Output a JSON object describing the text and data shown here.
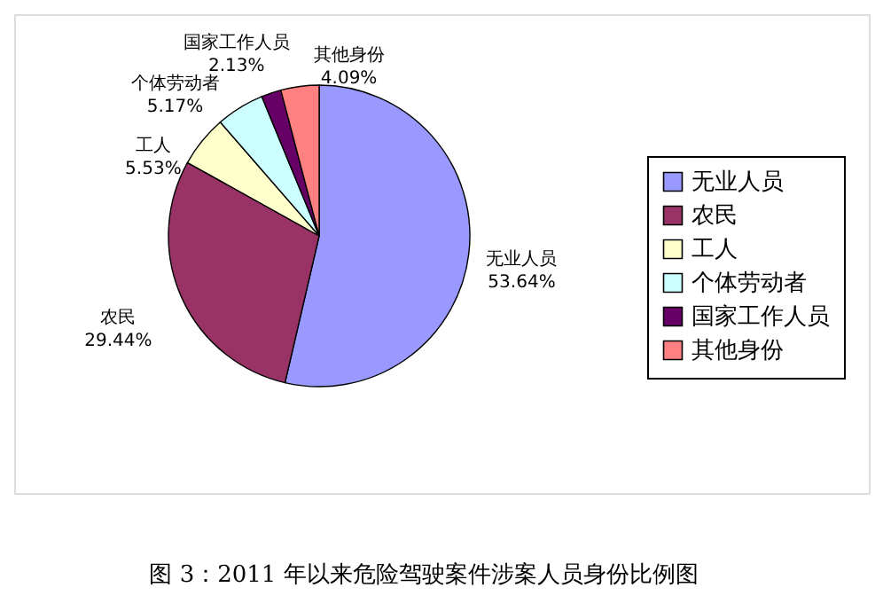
{
  "chart_data": {
    "type": "pie",
    "categories": [
      "无业人员",
      "农民",
      "工人",
      "个体劳动者",
      "国家工作人员",
      "其他身份"
    ],
    "values": [
      53.64,
      29.44,
      5.53,
      5.17,
      2.13,
      4.09
    ],
    "value_labels": [
      "53.64%",
      "29.44%",
      "5.53%",
      "5.17%",
      "2.13%",
      "4.09%"
    ],
    "colors": [
      "#9999ff",
      "#993366",
      "#ffffcc",
      "#ccffff",
      "#660066",
      "#ff8080"
    ],
    "legend": "right",
    "annotations": [
      "图 3：2011 年以来危险驾驶案件涉案人员身份比例图"
    ]
  }
}
